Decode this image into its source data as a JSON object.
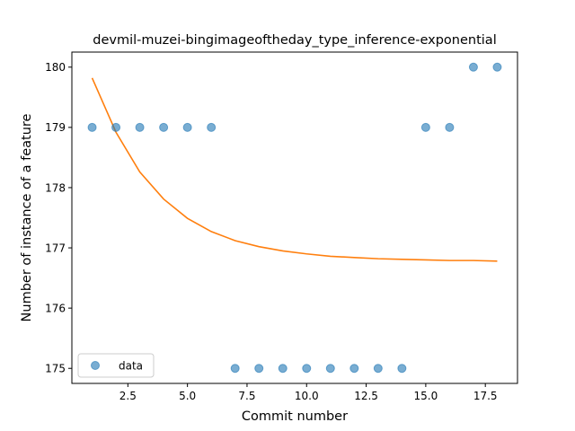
{
  "chart_data": {
    "type": "scatter",
    "title": "devmil-muzei-bingimageoftheday_type_inference-exponential",
    "xlabel": "Commit number",
    "ylabel": "Number of instance of a feature",
    "xlim": [
      0.15,
      18.85
    ],
    "ylim": [
      174.75,
      180.25
    ],
    "xticks": [
      2.5,
      5.0,
      7.5,
      10.0,
      12.5,
      15.0,
      17.5
    ],
    "xtick_labels": [
      "2.5",
      "5.0",
      "7.5",
      "10.0",
      "12.5",
      "15.0",
      "17.5"
    ],
    "yticks": [
      175,
      176,
      177,
      178,
      179,
      180
    ],
    "ytick_labels": [
      "175",
      "176",
      "177",
      "178",
      "179",
      "180"
    ],
    "grid": false,
    "legend_placement": "lower-left",
    "series": [
      {
        "name": "data",
        "kind": "scatter",
        "color": "#1f77b4",
        "x": [
          1,
          2,
          3,
          4,
          5,
          6,
          7,
          8,
          9,
          10,
          11,
          12,
          13,
          14,
          15,
          16,
          17,
          18
        ],
        "y": [
          179,
          179,
          179,
          179,
          179,
          179,
          175,
          175,
          175,
          175,
          175,
          175,
          175,
          175,
          179,
          179,
          180,
          180
        ]
      },
      {
        "kind": "line",
        "color": "#ff7f0e",
        "x": [
          1,
          2,
          3,
          4,
          5,
          6,
          7,
          8,
          9,
          10,
          11,
          12,
          13,
          14,
          15,
          16,
          17,
          18
        ],
        "y": [
          179.82,
          178.92,
          178.26,
          177.81,
          177.49,
          177.27,
          177.12,
          177.02,
          176.95,
          176.9,
          176.86,
          176.84,
          176.82,
          176.81,
          176.8,
          176.79,
          176.79,
          176.78
        ]
      }
    ]
  }
}
